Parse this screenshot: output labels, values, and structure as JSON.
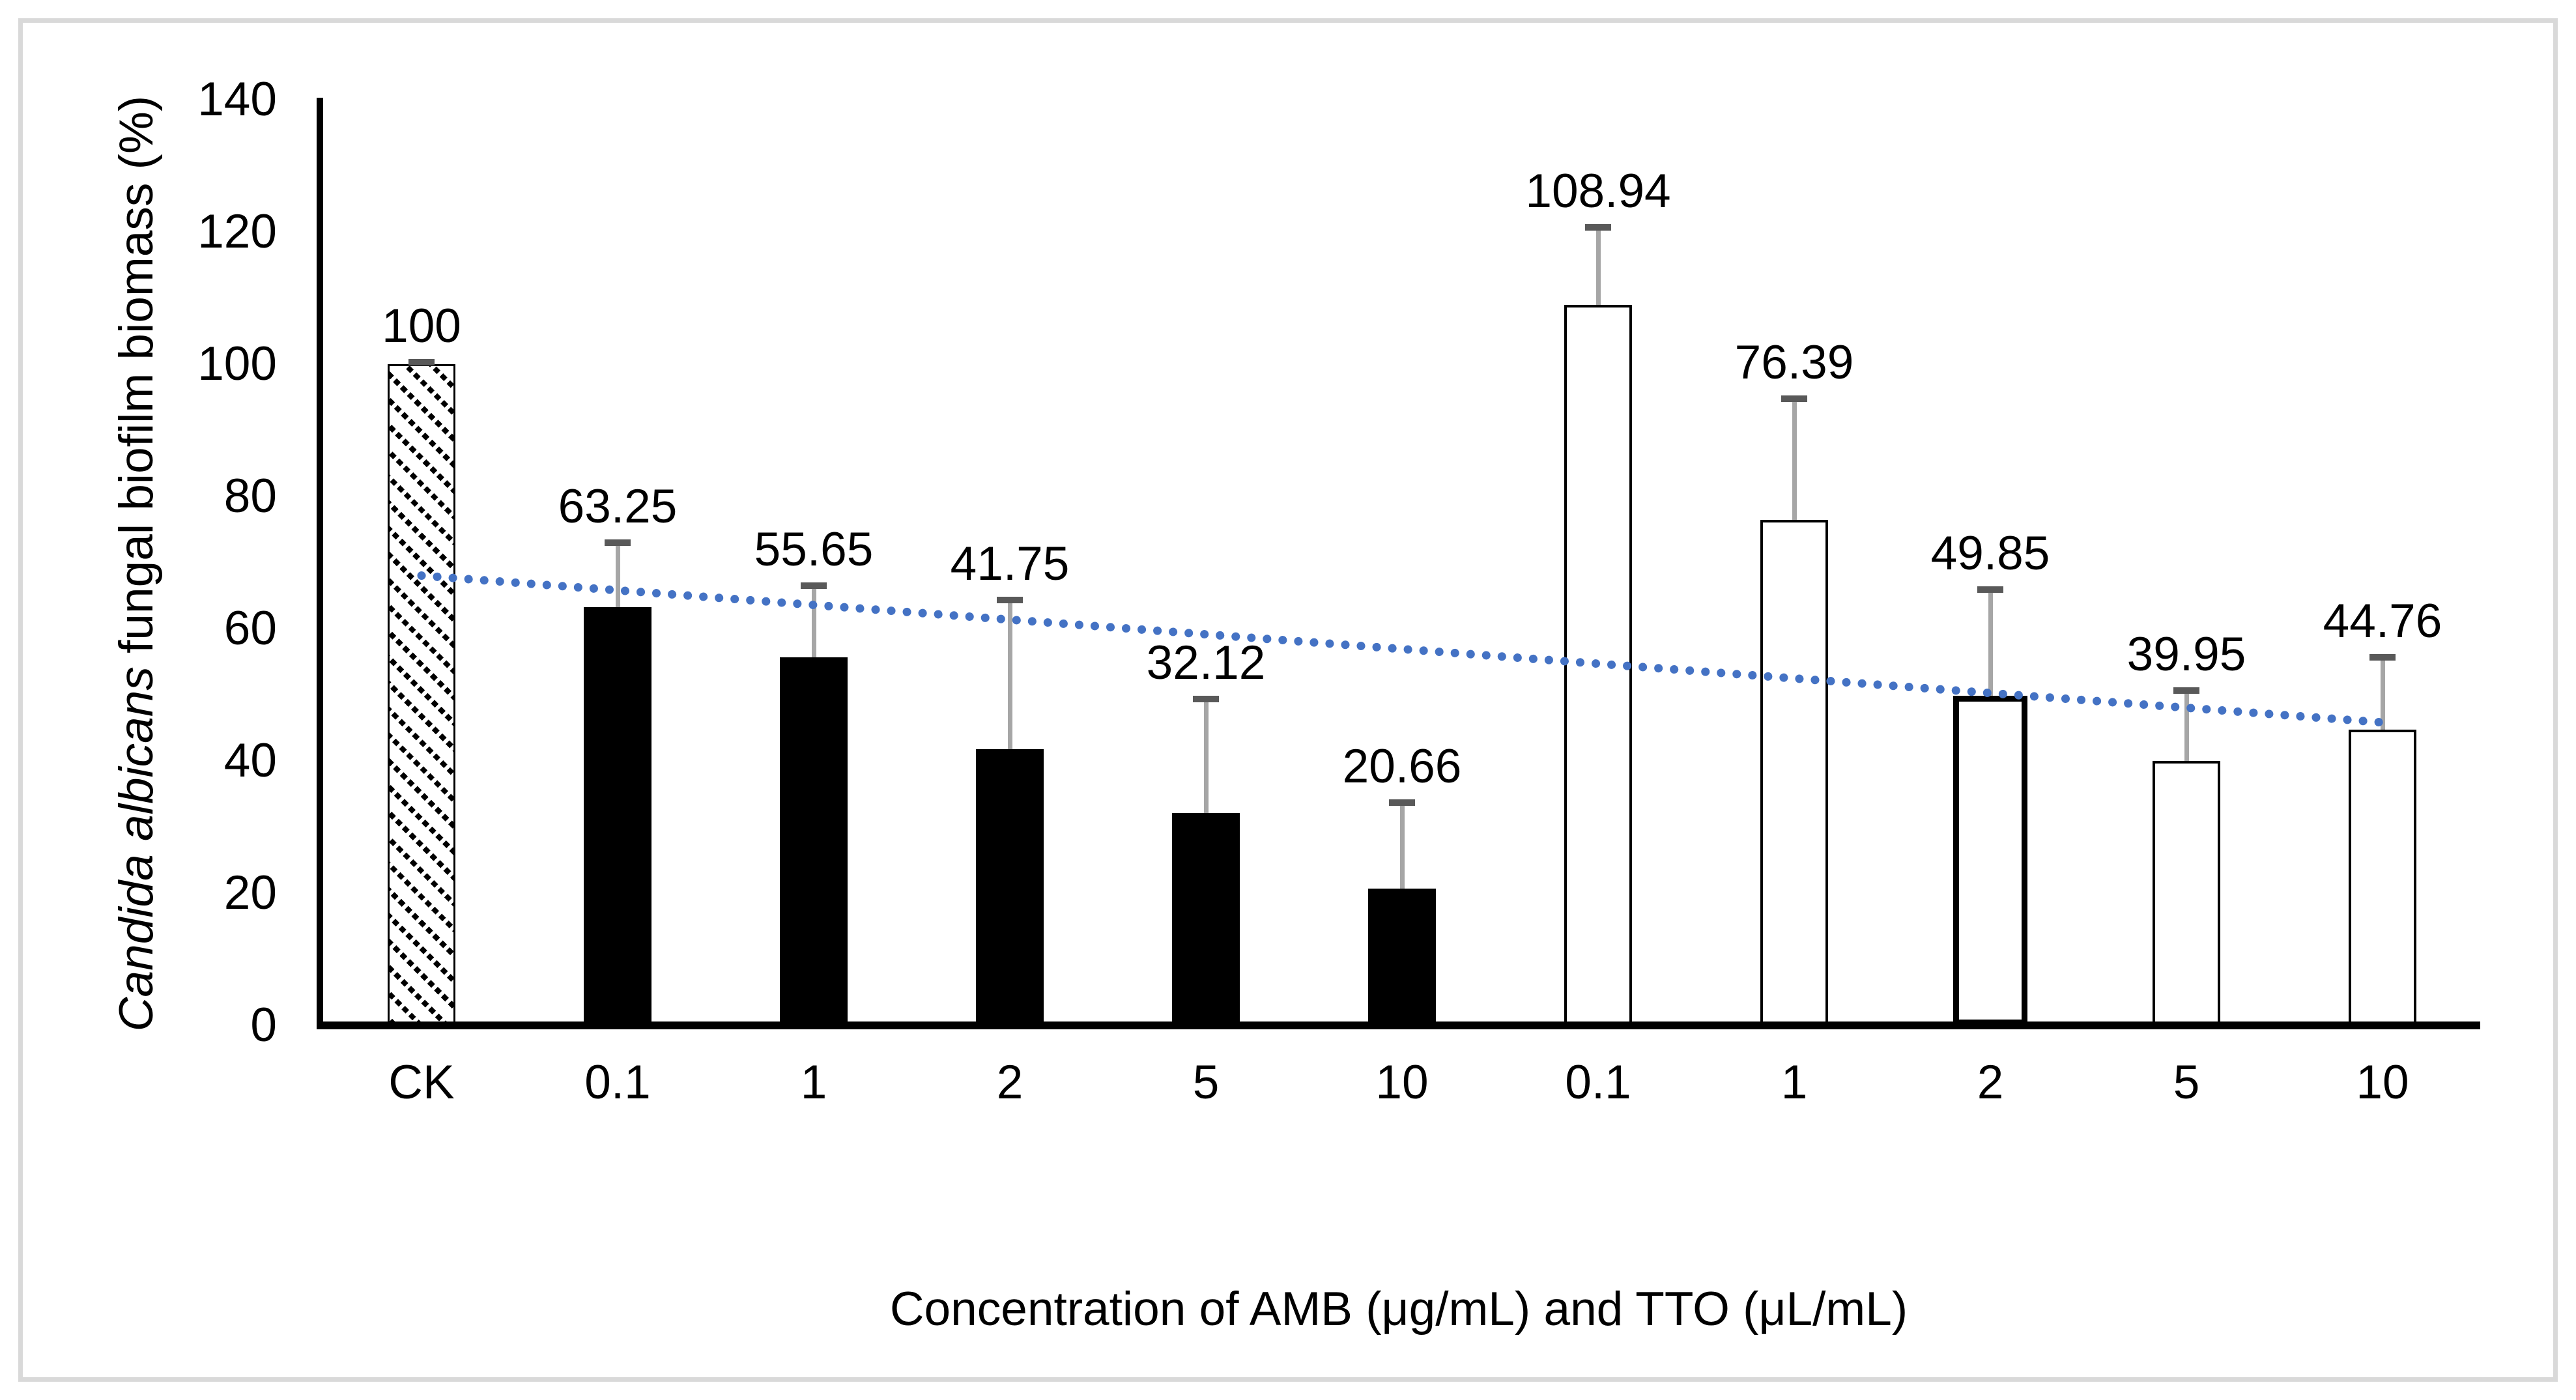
{
  "chart_data": {
    "type": "bar",
    "title": "",
    "ylabel_italic": "Candida albicans",
    "ylabel_rest": " fungal biofilm biomass (%)",
    "xlabel": "Concentration of AMB (μg/mL) and TTO (μL/mL)",
    "ylim": [
      0,
      140
    ],
    "ytick_interval": 20,
    "yticks": [
      0,
      20,
      40,
      60,
      80,
      100,
      120,
      140
    ],
    "grid": false,
    "legend": null,
    "categories": [
      "CK",
      "0.1",
      "1",
      "2",
      "5",
      "10",
      "0.1",
      "1",
      "2",
      "5",
      "10"
    ],
    "bars": [
      {
        "label": "CK",
        "group": "control",
        "value": 100,
        "data_label": "100",
        "error": 0.3,
        "style": "hatched"
      },
      {
        "label": "0.1",
        "group": "AMB",
        "value": 63.25,
        "data_label": "63.25",
        "error": 9.7,
        "style": "black"
      },
      {
        "label": "1",
        "group": "AMB",
        "value": 55.65,
        "data_label": "55.65",
        "error": 10.8,
        "style": "black"
      },
      {
        "label": "2",
        "group": "AMB",
        "value": 41.75,
        "data_label": "41.75",
        "error": 22.6,
        "style": "black"
      },
      {
        "label": "5",
        "group": "AMB",
        "value": 32.12,
        "data_label": "32.12",
        "error": 17.2,
        "style": "black"
      },
      {
        "label": "10",
        "group": "AMB",
        "value": 20.66,
        "data_label": "20.66",
        "error": 13.0,
        "style": "black"
      },
      {
        "label": "0.1",
        "group": "TTO",
        "value": 108.94,
        "data_label": "108.94",
        "error": 11.7,
        "style": "white"
      },
      {
        "label": "1",
        "group": "TTO",
        "value": 76.39,
        "data_label": "76.39",
        "error": 18.4,
        "style": "white"
      },
      {
        "label": "2",
        "group": "TTO",
        "value": 49.85,
        "data_label": "49.85",
        "error": 16.0,
        "style": "white-thick"
      },
      {
        "label": "5",
        "group": "TTO",
        "value": 39.95,
        "data_label": "39.95",
        "error": 10.7,
        "style": "white"
      },
      {
        "label": "10",
        "group": "TTO",
        "value": 44.76,
        "data_label": "44.76",
        "error": 10.9,
        "style": "white"
      }
    ],
    "trendline": {
      "style": "round-dot",
      "color": "#4472C4",
      "start": {
        "slot": 0,
        "value": 68.0
      },
      "end": {
        "slot": 10,
        "value": 45.8
      }
    },
    "colors": {
      "bar_black": "#000000",
      "bar_white": "#ffffff",
      "bar_border": "#000000",
      "error_bar_line": "#a6a6a6",
      "error_bar_cap": "#595959",
      "trendline": "#4472C4",
      "frame_border": "#d9d9d9",
      "axis": "#000000",
      "text": "#000000"
    }
  }
}
